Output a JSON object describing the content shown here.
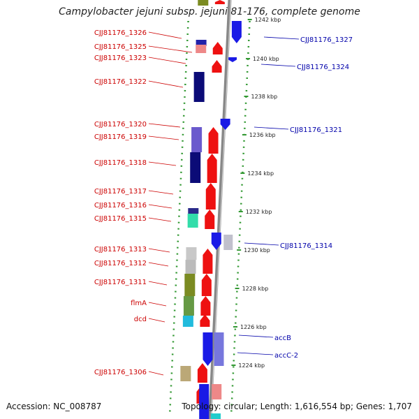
{
  "title": "Campylobacter jejuni subsp. jejuni 81-176, complete genome",
  "footer": {
    "accession": "Accession: NC_008787",
    "summary": "Topology: circular; Length: 1,616,554 bp; Genes: 1,707"
  },
  "colors": {
    "label_left": "#cc0000",
    "label_right": "#0000aa",
    "backbone": "#888888",
    "dotted_track": "#339933",
    "forward_gene": "#ee1111",
    "reverse_gene": "#1a1ae6"
  },
  "scale_ticks": [
    "1242 kbp",
    "1240 kbp",
    "1238 kbp",
    "1236 kbp",
    "1234 kbp",
    "1232 kbp",
    "1230 kbp",
    "1228 kbp",
    "1226 kbp",
    "1224 kbp"
  ],
  "left_labels": [
    "CJJ81176_1326",
    "CJJ81176_1325",
    "CJJ81176_1323",
    "CJJ81176_1322",
    "CJJ81176_1320",
    "CJJ81176_1319",
    "CJJ81176_1318",
    "CJJ81176_1317",
    "CJJ81176_1316",
    "CJJ81176_1315",
    "CJJ81176_1313",
    "CJJ81176_1312",
    "CJJ81176_1311",
    "flmA",
    "dcd",
    "CJJ81176_1306"
  ],
  "right_labels": [
    "CJJ81176_1327",
    "CJJ81176_1324",
    "CJJ81176_1321",
    "CJJ81176_1314",
    "accB",
    "accC-2"
  ]
}
